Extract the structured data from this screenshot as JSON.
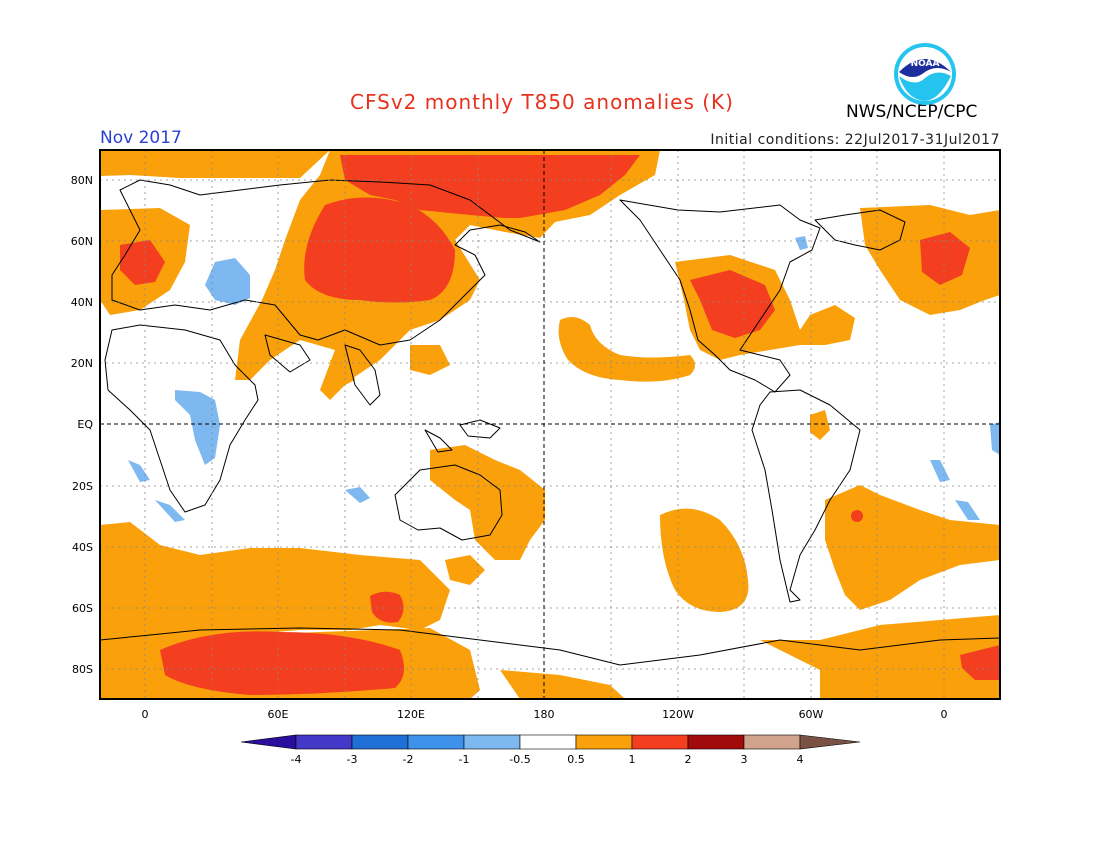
{
  "header": {
    "title": "CFSv2 monthly T850 anomalies (K)",
    "agency": "NWS/NCEP/CPC",
    "month": "Nov 2017",
    "initial_conditions": "Initial conditions: 22Jul2017-31Jul2017",
    "logo_text": "NOAA"
  },
  "axes": {
    "lat_labels": [
      "80N",
      "60N",
      "40N",
      "20N",
      "EQ",
      "20S",
      "40S",
      "60S",
      "80S"
    ],
    "lon_labels": [
      "0",
      "60E",
      "120E",
      "180",
      "120W",
      "60W",
      "0"
    ]
  },
  "colorbar": {
    "labels": [
      "-4",
      "-3",
      "-2",
      "-1",
      "-0.5",
      "0.5",
      "1",
      "2",
      "3",
      "4"
    ],
    "colors": [
      "#2a0f9e",
      "#4338c8",
      "#1f6fd6",
      "#3e92ec",
      "#7db8f0",
      "#ffffff",
      "#f9a00a",
      "#f33f1f",
      "#a10b0b",
      "#d2a38c",
      "#7a5244"
    ]
  }
}
